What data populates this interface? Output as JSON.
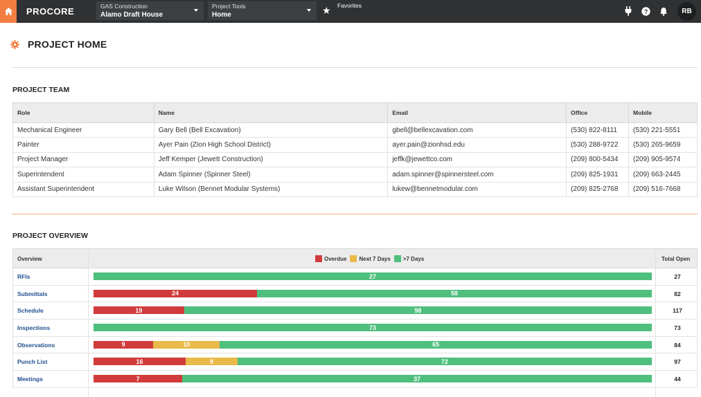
{
  "colors": {
    "accent": "#f47e42",
    "topbar": "#2f3133",
    "overdue": "#d13b3b",
    "next7": "#e9b949",
    "gt7": "#4fbf7d",
    "link": "#1f4f8f"
  },
  "topbar": {
    "home_icon": "home-icon",
    "logo": "PROCORE",
    "company_label": "GAS Construction",
    "project_name": "Alamo Draft House",
    "tools_label": "Project Tools",
    "tool_name": "Home",
    "favorites_label": "Favorites",
    "favorites_icon": "star-icon",
    "icons": [
      "plug-icon",
      "help-icon",
      "bell-icon"
    ],
    "avatar_initials": "RB"
  },
  "page": {
    "title": "PROJECT HOME",
    "title_icon": "gear-icon"
  },
  "team": {
    "title": "PROJECT TEAM",
    "columns": [
      "Role",
      "Name",
      "Email",
      "Office",
      "Mobile"
    ],
    "rows": [
      [
        "Mechanical Engineer",
        "Gary Bell (Bell Excavation)",
        "gbell@bellexcavation.com",
        "(530) 822-8111",
        "(530) 221-5551"
      ],
      [
        "Painter",
        "Ayer Pain (Zion High School District)",
        "ayer.pain@zionhsd.edu",
        "(530) 288-9722",
        "(530) 265-9659"
      ],
      [
        "Project Manager",
        "Jeff Kemper (Jewett Construction)",
        "jeffk@jewettco.com",
        "(209) 800-5434",
        "(209) 905-9574"
      ],
      [
        "Superintendent",
        "Adam Spinner (Spinner Steel)",
        "adam.spinner@spinnersteel.com",
        "(209) 825-1931",
        "(209) 663-2445"
      ],
      [
        "Assistant Superintendent",
        "Luke Wilson (Bennet Modular Systems)",
        "lukew@bennetmodular.com",
        "(209) 825-2768",
        "(209) 516-7668"
      ]
    ]
  },
  "overview": {
    "title": "PROJECT OVERVIEW",
    "col_overview": "Overview",
    "col_total": "Total Open",
    "legend": [
      "Overdue",
      "Next 7 Days",
      ">7 Days"
    ],
    "rows": [
      {
        "label": "RFIs",
        "overdue": 0,
        "next7": 0,
        "gt7": 27,
        "total": "27"
      },
      {
        "label": "Submittals",
        "overdue": 24,
        "next7": 0,
        "gt7": 58,
        "total": "82"
      },
      {
        "label": "Schedule",
        "overdue": 19,
        "next7": 0,
        "gt7": 98,
        "total": "117"
      },
      {
        "label": "Inspections",
        "overdue": 0,
        "next7": 0,
        "gt7": 73,
        "total": "73"
      },
      {
        "label": "Observations",
        "overdue": 9,
        "next7": 10,
        "gt7": 65,
        "total": "84"
      },
      {
        "label": "Punch List",
        "overdue": 16,
        "next7": 9,
        "gt7": 72,
        "total": "97"
      },
      {
        "label": "Meetings",
        "overdue": 7,
        "next7": 0,
        "gt7": 37,
        "total": "44"
      }
    ]
  }
}
